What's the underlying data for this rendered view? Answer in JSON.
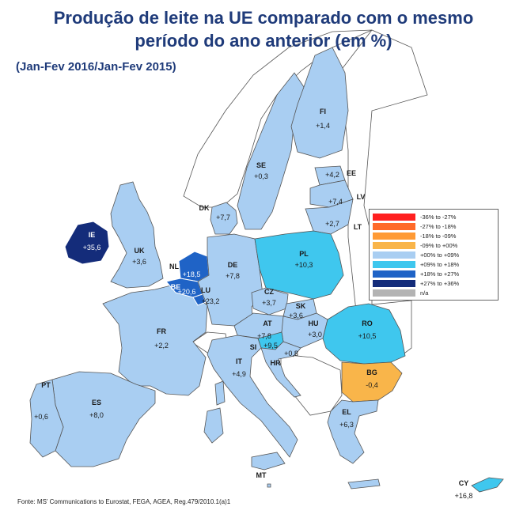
{
  "header": {
    "title_line1": "Produção de leite na UE comparado com o mesmo",
    "title_line2": "período do ano anterior (em %)",
    "subtitle": "(Jan-Fev 2016/Jan-Fev 2015)"
  },
  "colors": {
    "sea": "#ffffff",
    "non_eu": "#ffffff",
    "border": "#555555",
    "light_blue": "#a9cef2",
    "mid_cyan": "#3fc7ee",
    "blue": "#1f63c6",
    "dark_blue": "#142c7a",
    "orange_light": "#f9b54a"
  },
  "legend": {
    "items": [
      {
        "label": "-36% to -27%",
        "color": "#ff2020"
      },
      {
        "label": "-27% to -18%",
        "color": "#ff6a2a"
      },
      {
        "label": "-18% to -09%",
        "color": "#ff9a35"
      },
      {
        "label": "-09% to +00%",
        "color": "#f9b54a"
      },
      {
        "label": "+00% to +09%",
        "color": "#a9cef2"
      },
      {
        "label": "+09% to +18%",
        "color": "#3fc7ee"
      },
      {
        "label": "+18% to +27%",
        "color": "#1f63c6"
      },
      {
        "label": "+27% to +36%",
        "color": "#142c7a"
      },
      {
        "label": "n/a",
        "color": "#b3b3b3"
      }
    ]
  },
  "countries": {
    "IE": {
      "code": "IE",
      "value": "+35,6",
      "value_num": 35.6
    },
    "UK": {
      "code": "UK",
      "value": "+3,6",
      "value_num": 3.6
    },
    "FR": {
      "code": "FR",
      "value": "+2,2",
      "value_num": 2.2
    },
    "ES": {
      "code": "ES",
      "value": "+8,0",
      "value_num": 8.0
    },
    "PT": {
      "code": "PT",
      "value": "+0,6",
      "value_num": 0.6
    },
    "NL": {
      "code": "NL",
      "value": "+18,5",
      "value_num": 18.5
    },
    "BE": {
      "code": "BE",
      "value": "+20,6",
      "value_num": 20.6
    },
    "LU": {
      "code": "LU",
      "value": "+23,2",
      "value_num": 23.2
    },
    "DE": {
      "code": "DE",
      "value": "+7,8",
      "value_num": 7.8
    },
    "DK": {
      "code": "DK",
      "value": "+7,7",
      "value_num": 7.7
    },
    "SE": {
      "code": "SE",
      "value": "+0,3",
      "value_num": 0.3
    },
    "FI": {
      "code": "FI",
      "value": "+1,4",
      "value_num": 1.4
    },
    "EE": {
      "code": "EE",
      "value": "+4,2",
      "value_num": 4.2
    },
    "LV": {
      "code": "LV",
      "value": "+7,4",
      "value_num": 7.4
    },
    "LT": {
      "code": "LT",
      "value": "+2,7",
      "value_num": 2.7
    },
    "PL": {
      "code": "PL",
      "value": "+10,3",
      "value_num": 10.3
    },
    "CZ": {
      "code": "CZ",
      "value": "+3,7",
      "value_num": 3.7
    },
    "SK": {
      "code": "SK",
      "value": "+3,6",
      "value_num": 3.6
    },
    "AT": {
      "code": "AT",
      "value": "+7,8",
      "value_num": 7.8
    },
    "HU": {
      "code": "HU",
      "value": "+3,0",
      "value_num": 3.0
    },
    "SI": {
      "code": "SI",
      "value": "+9,5",
      "value_num": 9.5
    },
    "HR": {
      "code": "HR",
      "value": "+0,8",
      "value_num": 0.8
    },
    "RO": {
      "code": "RO",
      "value": "+10,5",
      "value_num": 10.5
    },
    "BG": {
      "code": "BG",
      "value": "-0,4",
      "value_num": -0.4
    },
    "IT": {
      "code": "IT",
      "value": "+4,9",
      "value_num": 4.9
    },
    "EL": {
      "code": "EL",
      "value": "+6,3",
      "value_num": 6.3
    },
    "MT": {
      "code": "MT",
      "value": "",
      "value_num": null
    },
    "CY": {
      "code": "CY",
      "value": "+16,8",
      "value_num": 16.8
    }
  },
  "source": "Fonte: MS' Communications to Eurostat, FEGA, AGEA, Reg.479/2010.1(a)1"
}
